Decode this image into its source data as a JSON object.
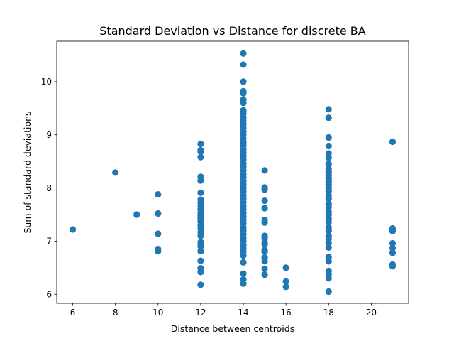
{
  "chart_data": {
    "type": "scatter",
    "title": "Standard Deviation vs Distance for discrete BA",
    "xlabel": "Distance between centroids",
    "ylabel": "Sum of standard deviations",
    "xlim": [
      5.25,
      21.75
    ],
    "ylim": [
      5.83,
      10.76
    ],
    "xticks": [
      6,
      8,
      10,
      12,
      14,
      16,
      18,
      20
    ],
    "yticks": [
      6,
      7,
      8,
      9,
      10
    ],
    "grid": false,
    "color": "#1f77b4",
    "points": [
      [
        6,
        7.22
      ],
      [
        8,
        8.29
      ],
      [
        9,
        7.5
      ],
      [
        10,
        7.88
      ],
      [
        10,
        7.52
      ],
      [
        10,
        7.14
      ],
      [
        10,
        6.85
      ],
      [
        10,
        6.81
      ],
      [
        12,
        8.83
      ],
      [
        12,
        8.71
      ],
      [
        12,
        8.68
      ],
      [
        12,
        8.58
      ],
      [
        12,
        8.21
      ],
      [
        12,
        8.14
      ],
      [
        12,
        7.91
      ],
      [
        12,
        7.78
      ],
      [
        12,
        7.72
      ],
      [
        12,
        7.66
      ],
      [
        12,
        7.6
      ],
      [
        12,
        7.53
      ],
      [
        12,
        7.48
      ],
      [
        12,
        7.43
      ],
      [
        12,
        7.37
      ],
      [
        12,
        7.3
      ],
      [
        12,
        7.24
      ],
      [
        12,
        7.17
      ],
      [
        12,
        7.1
      ],
      [
        12,
        6.98
      ],
      [
        12,
        6.94
      ],
      [
        12,
        6.9
      ],
      [
        12,
        6.81
      ],
      [
        12,
        6.63
      ],
      [
        12,
        6.49
      ],
      [
        12,
        6.42
      ],
      [
        12,
        6.18
      ],
      [
        14,
        10.53
      ],
      [
        14,
        10.32
      ],
      [
        14,
        10.0
      ],
      [
        14,
        9.82
      ],
      [
        14,
        9.78
      ],
      [
        14,
        9.66
      ],
      [
        14,
        9.6
      ],
      [
        14,
        9.46
      ],
      [
        14,
        9.4
      ],
      [
        14,
        9.33
      ],
      [
        14,
        9.26
      ],
      [
        14,
        9.2
      ],
      [
        14,
        9.13
      ],
      [
        14,
        9.06
      ],
      [
        14,
        9.0
      ],
      [
        14,
        8.93
      ],
      [
        14,
        8.86
      ],
      [
        14,
        8.8
      ],
      [
        14,
        8.73
      ],
      [
        14,
        8.66
      ],
      [
        14,
        8.6
      ],
      [
        14,
        8.53
      ],
      [
        14,
        8.46
      ],
      [
        14,
        8.4
      ],
      [
        14,
        8.33
      ],
      [
        14,
        8.26
      ],
      [
        14,
        8.2
      ],
      [
        14,
        8.13
      ],
      [
        14,
        8.06
      ],
      [
        14,
        8.0
      ],
      [
        14,
        7.93
      ],
      [
        14,
        7.86
      ],
      [
        14,
        7.8
      ],
      [
        14,
        7.73
      ],
      [
        14,
        7.66
      ],
      [
        14,
        7.6
      ],
      [
        14,
        7.53
      ],
      [
        14,
        7.46
      ],
      [
        14,
        7.4
      ],
      [
        14,
        7.33
      ],
      [
        14,
        7.26
      ],
      [
        14,
        7.2
      ],
      [
        14,
        7.13
      ],
      [
        14,
        7.06
      ],
      [
        14,
        7.0
      ],
      [
        14,
        6.93
      ],
      [
        14,
        6.86
      ],
      [
        14,
        6.8
      ],
      [
        14,
        6.73
      ],
      [
        14,
        6.6
      ],
      [
        14,
        6.39
      ],
      [
        14,
        6.28
      ],
      [
        14,
        6.2
      ],
      [
        15,
        8.33
      ],
      [
        15,
        8.01
      ],
      [
        15,
        7.97
      ],
      [
        15,
        7.76
      ],
      [
        15,
        7.62
      ],
      [
        15,
        7.4
      ],
      [
        15,
        7.35
      ],
      [
        15,
        7.1
      ],
      [
        15,
        7.05
      ],
      [
        15,
        6.98
      ],
      [
        15,
        6.94
      ],
      [
        15,
        6.83
      ],
      [
        15,
        6.8
      ],
      [
        15,
        6.69
      ],
      [
        15,
        6.62
      ],
      [
        15,
        6.48
      ],
      [
        15,
        6.37
      ],
      [
        16,
        6.5
      ],
      [
        16,
        6.24
      ],
      [
        16,
        6.14
      ],
      [
        18,
        9.48
      ],
      [
        18,
        9.32
      ],
      [
        18,
        8.95
      ],
      [
        18,
        8.79
      ],
      [
        18,
        8.65
      ],
      [
        18,
        8.57
      ],
      [
        18,
        8.45
      ],
      [
        18,
        8.36
      ],
      [
        18,
        8.3
      ],
      [
        18,
        8.24
      ],
      [
        18,
        8.18
      ],
      [
        18,
        8.12
      ],
      [
        18,
        8.06
      ],
      [
        18,
        8.0
      ],
      [
        18,
        7.94
      ],
      [
        18,
        7.86
      ],
      [
        18,
        7.8
      ],
      [
        18,
        7.7
      ],
      [
        18,
        7.64
      ],
      [
        18,
        7.55
      ],
      [
        18,
        7.5
      ],
      [
        18,
        7.42
      ],
      [
        18,
        7.36
      ],
      [
        18,
        7.26
      ],
      [
        18,
        7.2
      ],
      [
        18,
        7.1
      ],
      [
        18,
        7.04
      ],
      [
        18,
        6.96
      ],
      [
        18,
        6.88
      ],
      [
        18,
        6.7
      ],
      [
        18,
        6.62
      ],
      [
        18,
        6.44
      ],
      [
        18,
        6.38
      ],
      [
        18,
        6.3
      ],
      [
        18,
        6.05
      ],
      [
        21,
        8.87
      ],
      [
        21,
        7.24
      ],
      [
        21,
        7.19
      ],
      [
        21,
        6.96
      ],
      [
        21,
        6.87
      ],
      [
        21,
        6.78
      ],
      [
        21,
        6.56
      ],
      [
        21,
        6.53
      ]
    ]
  }
}
